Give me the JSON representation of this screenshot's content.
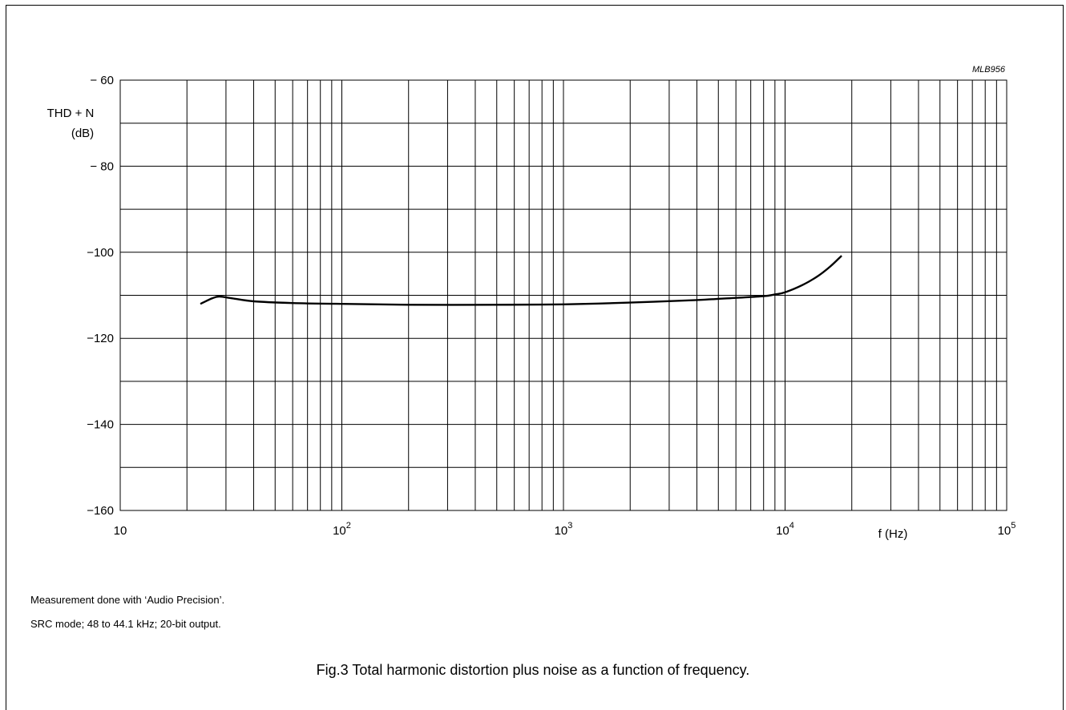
{
  "chart_data": {
    "type": "line",
    "code": "MLB956",
    "ylabel_line1": "THD + N",
    "ylabel_line2": "(dB)",
    "xlabel": "f  (Hz)",
    "x_scale": "log",
    "xlim": [
      10,
      100000
    ],
    "ylim": [
      -160,
      -60
    ],
    "grid": true,
    "x_tick_labels": [
      {
        "base": "10",
        "exp": ""
      },
      {
        "base": "10",
        "exp": "2"
      },
      {
        "base": "10",
        "exp": "3"
      },
      {
        "base": "10",
        "exp": "4"
      },
      {
        "base": "10",
        "exp": "5"
      }
    ],
    "y_ticks": [
      -60,
      -80,
      -100,
      -120,
      -140,
      -160
    ],
    "y_tick_labels": [
      "− 60",
      "− 80",
      "−100",
      "−120",
      "−140",
      "−160"
    ],
    "series": [
      {
        "x": [
          23,
          26,
          28,
          32,
          40,
          60,
          100,
          200,
          500,
          1000,
          2000,
          4000,
          6000,
          8000,
          9000,
          10000,
          12000,
          14000,
          16000,
          18000
        ],
        "y": [
          -112,
          -110.7,
          -110.3,
          -110.7,
          -111.4,
          -111.8,
          -112.0,
          -112.2,
          -112.2,
          -112.1,
          -111.7,
          -111.1,
          -110.6,
          -110.2,
          -109.8,
          -109.3,
          -107.6,
          -105.6,
          -103.3,
          -100.8
        ]
      }
    ]
  },
  "notes": {
    "line1": "Measurement done with ‘Audio Precision’.",
    "line2": "SRC mode; 48 to 44.1 kHz; 20-bit output."
  },
  "caption": "Fig.3  Total harmonic distortion plus noise as a function of frequency."
}
